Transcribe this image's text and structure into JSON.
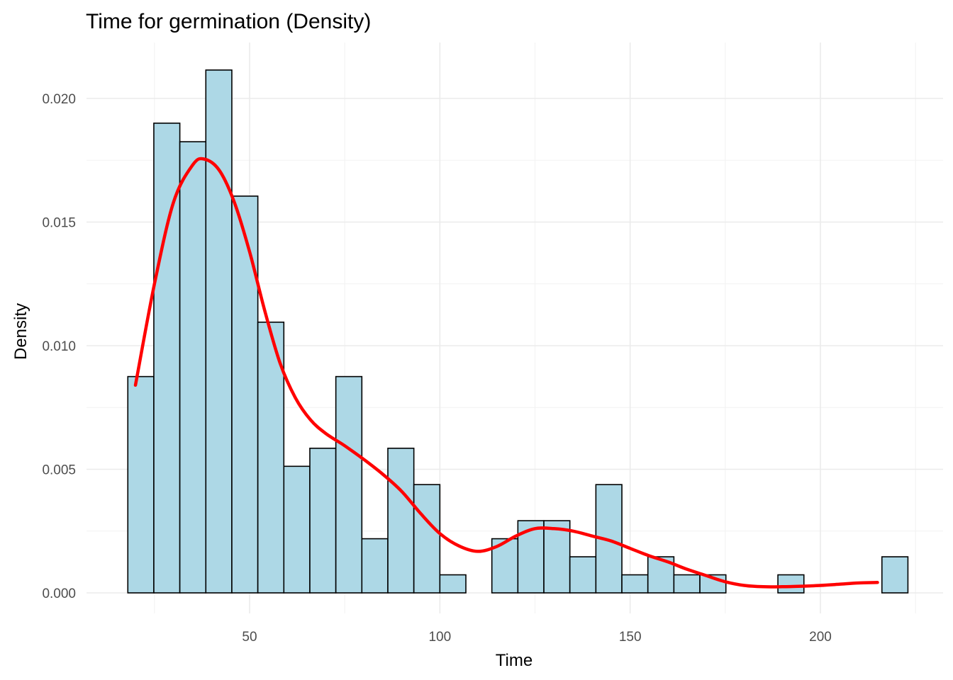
{
  "chart_data": {
    "type": "histogram",
    "title": "Time for germination (Density)",
    "xlabel": "Time",
    "ylabel": "Density",
    "xlim": [
      12,
      221
    ],
    "ylim": [
      0,
      0.0212
    ],
    "x_ticks": [
      50,
      100,
      150,
      200
    ],
    "x_tick_labels": [
      "50",
      "100",
      "150",
      "200"
    ],
    "y_ticks": [
      0.0,
      0.005,
      0.01,
      0.015,
      0.02
    ],
    "y_tick_labels": [
      "0.000",
      "0.005",
      "0.010",
      "0.015",
      "0.020"
    ],
    "grid": true,
    "bins": {
      "start": 18.0,
      "width": 6.8333,
      "values": [
        0.00875,
        0.019,
        0.01825,
        0.02115,
        0.01605,
        0.01095,
        0.00512,
        0.00585,
        0.00875,
        0.00219,
        0.00585,
        0.00438,
        0.00073,
        0.0,
        0.00219,
        0.00292,
        0.00292,
        0.00146,
        0.00438,
        0.00073,
        0.00146,
        0.00073,
        0.00073,
        0.0,
        0.0,
        0.00073,
        0.0,
        0.0,
        0.0,
        0.00146
      ]
    },
    "density_curve": {
      "x": [
        20,
        25,
        30,
        35,
        38,
        42,
        46,
        50,
        54,
        58,
        62,
        66,
        70,
        75,
        80,
        85,
        90,
        95,
        100,
        105,
        110,
        115,
        120,
        125,
        130,
        135,
        140,
        145,
        150,
        155,
        160,
        165,
        170,
        175,
        180,
        185,
        190,
        195,
        200,
        205,
        210,
        215
      ],
      "y": [
        0.0084,
        0.0125,
        0.0158,
        0.0173,
        0.01755,
        0.0171,
        0.0158,
        0.0138,
        0.0114,
        0.0093,
        0.0079,
        0.007,
        0.00645,
        0.00595,
        0.0054,
        0.0048,
        0.0041,
        0.0032,
        0.0024,
        0.0019,
        0.00168,
        0.00188,
        0.0023,
        0.0026,
        0.0026,
        0.0025,
        0.0023,
        0.0021,
        0.0018,
        0.0015,
        0.00125,
        0.00095,
        0.0007,
        0.00045,
        0.0003,
        0.00025,
        0.00025,
        0.00027,
        0.0003,
        0.00035,
        0.0004,
        0.00042
      ]
    },
    "colors": {
      "bar_fill": "#add8e6",
      "bar_stroke": "#000000",
      "curve": "#ff0000"
    }
  }
}
